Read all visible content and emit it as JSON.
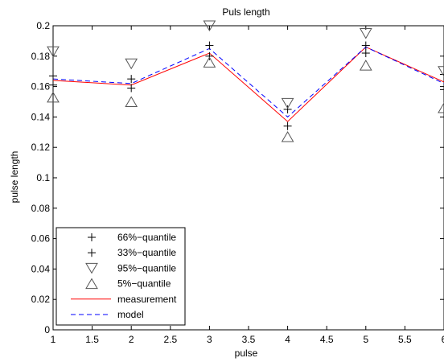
{
  "chart_data": {
    "type": "line",
    "title": "Puls length",
    "xlabel": "pulse",
    "ylabel": "pulse length",
    "xlim": [
      1,
      6
    ],
    "ylim": [
      0,
      0.2
    ],
    "x": [
      1,
      2,
      3,
      4,
      5,
      6
    ],
    "xticks": [
      "1",
      "1.5",
      "2",
      "2.5",
      "3",
      "3.5",
      "4",
      "4.5",
      "5",
      "5.5",
      "6"
    ],
    "xtick_values": [
      1,
      1.5,
      2,
      2.5,
      3,
      3.5,
      4,
      4.5,
      5,
      5.5,
      6
    ],
    "yticks": [
      "0",
      "0.02",
      "0.04",
      "0.06",
      "0.08",
      "0.1",
      "0.12",
      "0.14",
      "0.16",
      "0.18",
      "0.2"
    ],
    "ytick_values": [
      0,
      0.02,
      0.04,
      0.06,
      0.08,
      0.1,
      0.12,
      0.14,
      0.16,
      0.18,
      0.2
    ],
    "grid": false,
    "legend_position": "bottom-left",
    "series": [
      {
        "name": "66%−quantile",
        "marker": "plus",
        "color": "#000000",
        "values": [
          0.167,
          0.165,
          0.187,
          0.145,
          0.187,
          0.168
        ]
      },
      {
        "name": "33%−quantile",
        "marker": "plus",
        "color": "#000000",
        "values": [
          0.161,
          0.159,
          0.18,
          0.134,
          0.182,
          0.158
        ]
      },
      {
        "name": "95%−quantile",
        "marker": "triangle-down",
        "color": "#555555",
        "values": [
          0.183,
          0.175,
          0.2,
          0.149,
          0.195,
          0.17
        ]
      },
      {
        "name": "5%−quantile",
        "marker": "triangle-up",
        "color": "#555555",
        "values": [
          0.153,
          0.15,
          0.176,
          0.127,
          0.174,
          0.146
        ]
      },
      {
        "name": "measurement",
        "line": "solid",
        "color": "#ff0000",
        "values": [
          0.164,
          0.161,
          0.182,
          0.137,
          0.186,
          0.163
        ]
      },
      {
        "name": "model",
        "line": "dashed",
        "color": "#0000ff",
        "values": [
          0.165,
          0.162,
          0.185,
          0.14,
          0.186,
          0.162
        ]
      }
    ]
  }
}
